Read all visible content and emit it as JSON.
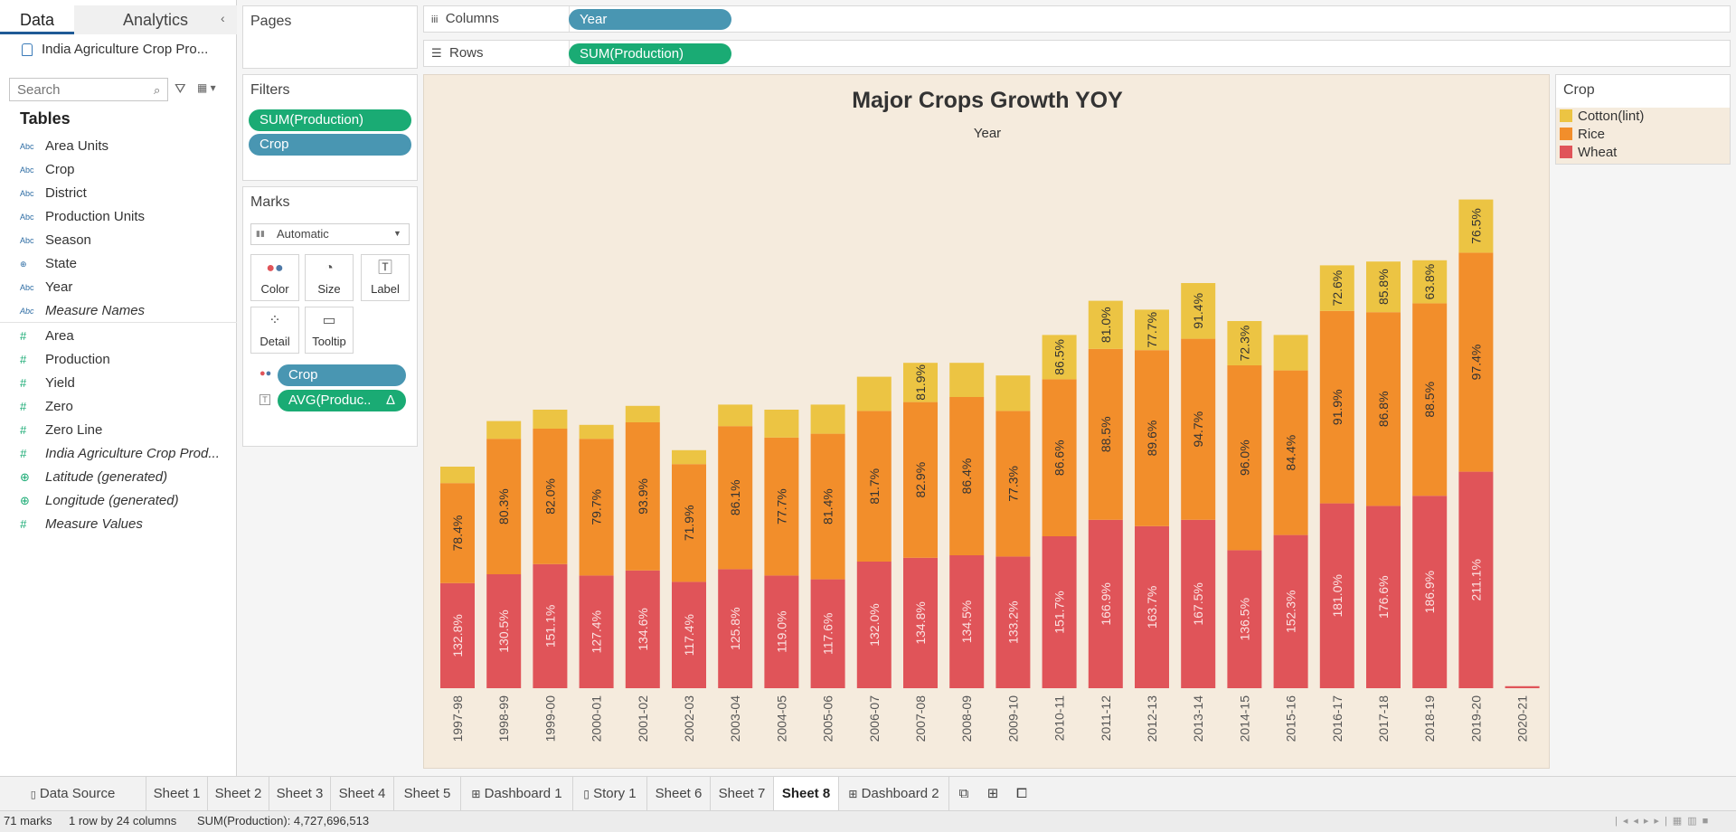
{
  "data_pane": {
    "tab_data": "Data",
    "tab_analytics": "Analytics",
    "datasource": "India Agriculture Crop Pro...",
    "search_placeholder": "Search",
    "tables_title": "Tables",
    "dimensions": [
      {
        "icon": "Abc",
        "label": "Area Units"
      },
      {
        "icon": "Abc",
        "label": "Crop"
      },
      {
        "icon": "Abc",
        "label": "District"
      },
      {
        "icon": "Abc",
        "label": "Production Units"
      },
      {
        "icon": "Abc",
        "label": "Season"
      },
      {
        "icon": "globe",
        "label": "State"
      },
      {
        "icon": "Abc",
        "label": "Year"
      },
      {
        "icon": "Abc",
        "label": "Measure Names"
      }
    ],
    "measures": [
      {
        "icon": "#",
        "label": "Area"
      },
      {
        "icon": "#",
        "label": "Production"
      },
      {
        "icon": "#",
        "label": "Yield"
      },
      {
        "icon": "#",
        "label": "Zero"
      },
      {
        "icon": "#",
        "label": "Zero Line"
      },
      {
        "icon": "#",
        "label": "India Agriculture Crop Prod..."
      },
      {
        "icon": "globe",
        "label": "Latitude (generated)"
      },
      {
        "icon": "globe",
        "label": "Longitude (generated)"
      },
      {
        "icon": "#",
        "label": "Measure Values"
      }
    ]
  },
  "cards": {
    "pages_title": "Pages",
    "filters_title": "Filters",
    "filters": [
      "SUM(Production)",
      "Crop"
    ],
    "marks_title": "Marks",
    "mark_type": "Automatic",
    "mark_buttons": [
      "Color",
      "Size",
      "Label",
      "Detail",
      "Tooltip"
    ],
    "marks_pills": [
      "Crop",
      "AVG(Produc.."
    ],
    "delta_symbol": "Δ"
  },
  "shelves": {
    "columns_label": "Columns",
    "columns_pill": "Year",
    "rows_label": "Rows",
    "rows_pill": "SUM(Production)"
  },
  "legend": {
    "title": "Crop",
    "items": [
      {
        "label": "Cotton(lint)",
        "color": "#ecc443"
      },
      {
        "label": "Rice",
        "color": "#f28e2b"
      },
      {
        "label": "Wheat",
        "color": "#e05459"
      }
    ]
  },
  "chart_data": {
    "type": "bar",
    "stacked": true,
    "title": "Major Crops Growth YOY",
    "column_header": "Year",
    "categories": [
      "1997-98",
      "1998-99",
      "1999-00",
      "2000-01",
      "2001-02",
      "2002-03",
      "2003-04",
      "2004-05",
      "2005-06",
      "2006-07",
      "2007-08",
      "2008-09",
      "2009-10",
      "2010-11",
      "2011-12",
      "2012-13",
      "2013-14",
      "2014-15",
      "2015-16",
      "2016-17",
      "2017-18",
      "2018-19",
      "2019-20",
      "2020-21"
    ],
    "series": [
      {
        "name": "Wheat",
        "color": "#e05459",
        "values": [
          41.5,
          45.0,
          49.0,
          44.5,
          46.5,
          42.0,
          47.0,
          44.5,
          43.0,
          50.0,
          51.5,
          52.5,
          52.0,
          60.0,
          66.5,
          64.0,
          66.5,
          54.5,
          60.5,
          73.0,
          72.0,
          76.0,
          85.5,
          0.8
        ],
        "labels": [
          "132.8%",
          "130.5%",
          "151.1%",
          "127.4%",
          "134.6%",
          "117.4%",
          "125.8%",
          "119.0%",
          "117.6%",
          "132.0%",
          "134.8%",
          "134.5%",
          "133.2%",
          "151.7%",
          "166.9%",
          "163.7%",
          "167.5%",
          "136.5%",
          "152.3%",
          "181.0%",
          "176.6%",
          "186.9%",
          "211.1%",
          ""
        ]
      },
      {
        "name": "Rice",
        "color": "#f28e2b",
        "values": [
          39.5,
          53.5,
          53.5,
          54.0,
          58.5,
          46.5,
          56.5,
          54.5,
          57.5,
          59.5,
          61.5,
          62.5,
          57.5,
          62.0,
          67.5,
          69.5,
          71.5,
          73.0,
          65.0,
          76.0,
          76.5,
          76.0,
          86.5,
          0
        ],
        "labels": [
          "78.4%",
          "80.3%",
          "82.0%",
          "79.7%",
          "93.9%",
          "71.9%",
          "86.1%",
          "77.7%",
          "81.4%",
          "81.7%",
          "82.9%",
          "86.4%",
          "77.3%",
          "86.6%",
          "88.5%",
          "89.6%",
          "94.7%",
          "96.0%",
          "84.4%",
          "91.9%",
          "86.8%",
          "88.5%",
          "97.4%",
          ""
        ]
      },
      {
        "name": "Cotton(lint)",
        "color": "#ecc443",
        "values": [
          6.5,
          7.0,
          7.5,
          5.5,
          6.5,
          5.5,
          8.5,
          11.0,
          11.5,
          13.5,
          15.5,
          13.5,
          14.0,
          17.5,
          19.0,
          16.0,
          22.0,
          17.5,
          14.0,
          18.0,
          20.0,
          17.0,
          21.0,
          0
        ],
        "labels": [
          "",
          "",
          "",
          "",
          "",
          "",
          "",
          "",
          "",
          "",
          "81.9%",
          "",
          "",
          "86.5%",
          "81.0%",
          "77.7%",
          "91.4%",
          "72.3%",
          "",
          "72.6%",
          "85.8%",
          "63.8%",
          "76.5%",
          ""
        ]
      }
    ],
    "ymax": 200,
    "legend_position": "right"
  },
  "sheet_tabs": [
    "Data Source",
    "Sheet 1",
    "Sheet 2",
    "Sheet 3",
    "Sheet 4",
    "Sheet 5",
    "Dashboard 1",
    "Story 1",
    "Sheet 6",
    "Sheet 7",
    "Sheet 8",
    "Dashboard 2"
  ],
  "active_tab": "Sheet 8",
  "status": {
    "marks": "71 marks",
    "dims": "1 row by 24 columns",
    "sum": "SUM(Production): 4,727,696,513"
  }
}
